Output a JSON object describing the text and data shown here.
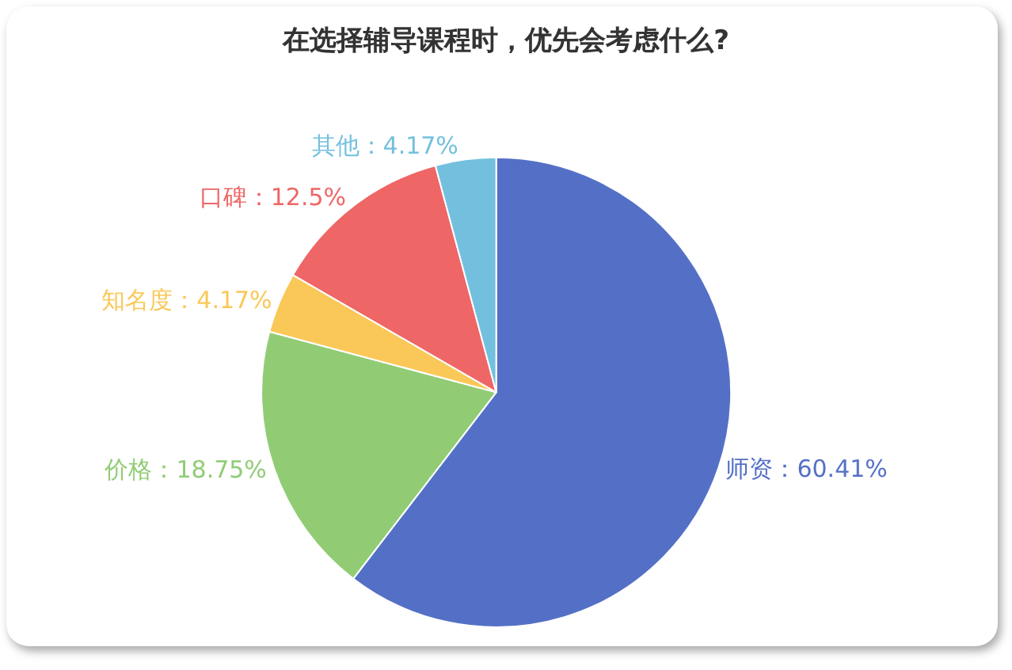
{
  "chart_data": {
    "type": "pie",
    "title": "在选择辅导课程时，优先会考虑什么?",
    "categories": [
      "师资",
      "价格",
      "知名度",
      "口碑",
      "其他"
    ],
    "values": [
      60.41,
      18.75,
      4.17,
      12.5,
      4.17
    ],
    "value_labels": [
      "60.41%",
      "18.75%",
      "4.17%",
      "12.5%",
      "4.17%"
    ],
    "colors": [
      "#5470c6",
      "#91cc75",
      "#fac858",
      "#ee6666",
      "#73c0de"
    ],
    "legend": false
  }
}
